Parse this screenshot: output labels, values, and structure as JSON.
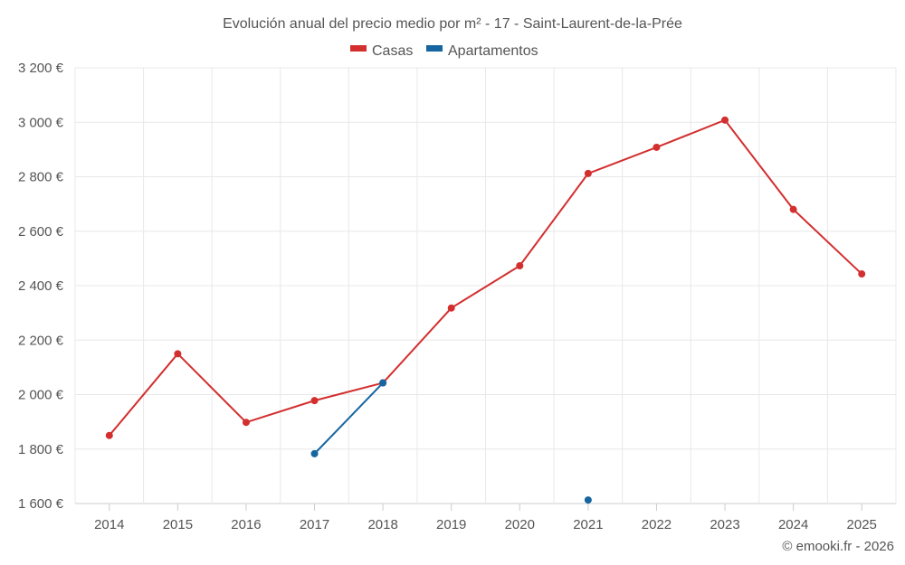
{
  "chart_data": {
    "type": "line",
    "title": "Evolución anual del precio medio por m² - 17 - Saint-Laurent-de-la-Prée",
    "categories": [
      "2014",
      "2015",
      "2016",
      "2017",
      "2018",
      "2019",
      "2020",
      "2021",
      "2022",
      "2023",
      "2024",
      "2025"
    ],
    "ylim": [
      1600,
      3200
    ],
    "yticks": [
      1600,
      1800,
      2000,
      2200,
      2400,
      2600,
      2800,
      3000,
      3200
    ],
    "ytick_labels": [
      "1 600 €",
      "1 800 €",
      "2 000 €",
      "2 200 €",
      "2 400 €",
      "2 600 €",
      "2 800 €",
      "3 000 €",
      "3 200 €"
    ],
    "grid": true,
    "legend_position": "top-center",
    "series": [
      {
        "name": "Casas",
        "color": "#d32f2f",
        "values": [
          1850,
          2150,
          1898,
          1978,
          2043,
          2318,
          2473,
          2812,
          2908,
          3008,
          2680,
          2443
        ]
      },
      {
        "name": "Apartamentos",
        "color": "#1565a0",
        "values": [
          null,
          null,
          null,
          1783,
          2043,
          null,
          null,
          1613,
          null,
          null,
          null,
          null
        ]
      }
    ],
    "credit": "© emooki.fr - 2026"
  }
}
